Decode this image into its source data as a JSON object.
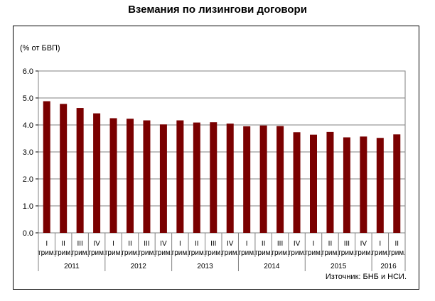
{
  "chart_data": {
    "type": "bar",
    "title": "Вземания по лизингови договори",
    "ylabel": "(% от БВП)",
    "source": "Източник: БНБ и НСИ.",
    "ylim": [
      0,
      6
    ],
    "yticks": [
      "0.0",
      "1.0",
      "2.0",
      "3.0",
      "4.0",
      "5.0",
      "6.0"
    ],
    "bar_color": "#7a0000",
    "grid": true,
    "quarter_suffix": "трим.",
    "categories": [
      {
        "q": "I",
        "year": "2011"
      },
      {
        "q": "II",
        "year": "2011"
      },
      {
        "q": "III",
        "year": "2011"
      },
      {
        "q": "IV",
        "year": "2011"
      },
      {
        "q": "I",
        "year": "2012"
      },
      {
        "q": "II",
        "year": "2012"
      },
      {
        "q": "III",
        "year": "2012"
      },
      {
        "q": "IV",
        "year": "2012"
      },
      {
        "q": "I",
        "year": "2013"
      },
      {
        "q": "II",
        "year": "2013"
      },
      {
        "q": "III",
        "year": "2013"
      },
      {
        "q": "IV",
        "year": "2013"
      },
      {
        "q": "I",
        "year": "2014"
      },
      {
        "q": "II",
        "year": "2014"
      },
      {
        "q": "III",
        "year": "2014"
      },
      {
        "q": "IV",
        "year": "2014"
      },
      {
        "q": "I",
        "year": "2015"
      },
      {
        "q": "II",
        "year": "2015"
      },
      {
        "q": "III",
        "year": "2015"
      },
      {
        "q": "IV",
        "year": "2015"
      },
      {
        "q": "I",
        "year": "2016"
      },
      {
        "q": "II",
        "year": "2016"
      }
    ],
    "years": [
      "2011",
      "2012",
      "2013",
      "2014",
      "2015",
      "2016"
    ],
    "values": [
      4.88,
      4.78,
      4.63,
      4.43,
      4.25,
      4.23,
      4.17,
      4.02,
      4.17,
      4.09,
      4.1,
      4.05,
      3.95,
      3.98,
      3.96,
      3.73,
      3.64,
      3.74,
      3.54,
      3.57,
      3.52,
      3.65
    ]
  }
}
